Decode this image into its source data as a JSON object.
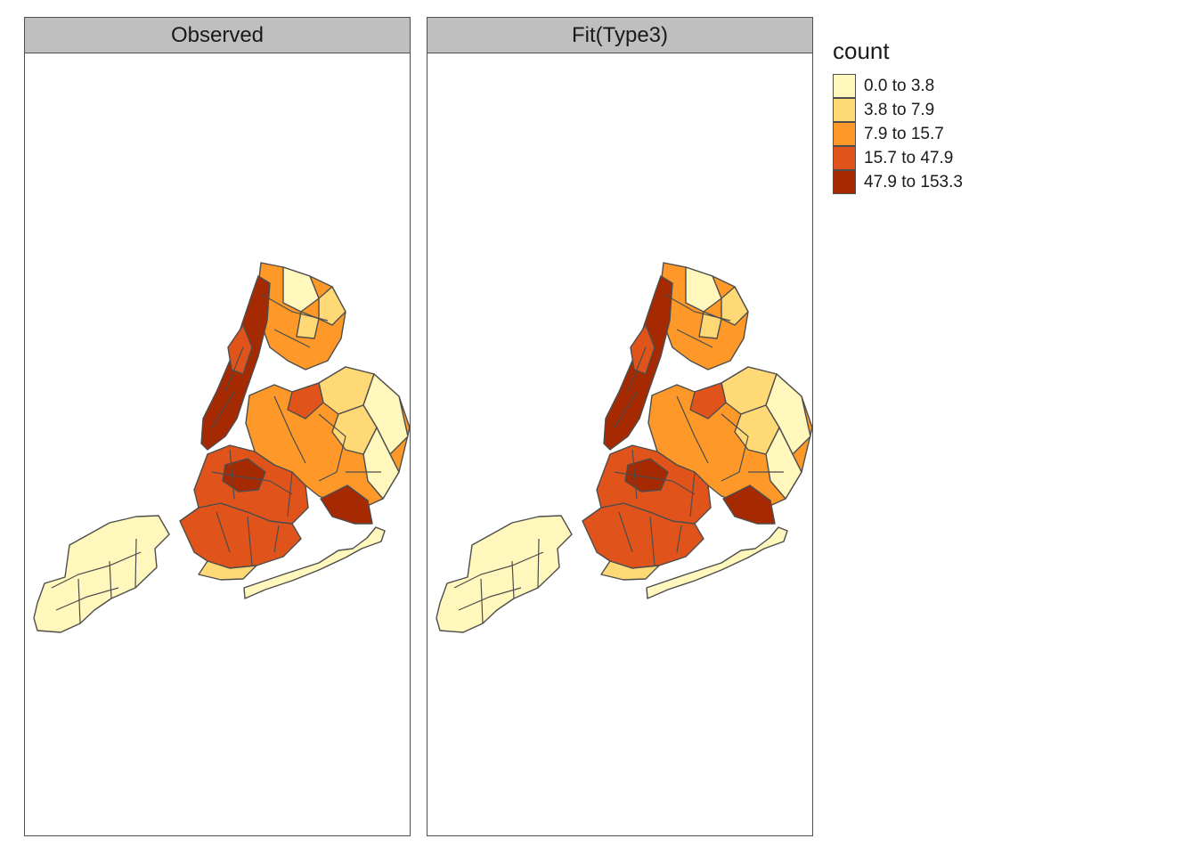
{
  "panels": [
    {
      "title": "Observed"
    },
    {
      "title": "Fit(Type3)"
    }
  ],
  "legend": {
    "title": "count",
    "items": [
      {
        "label": "0.0 to 3.8",
        "color": "#fff7bc"
      },
      {
        "label": "3.8 to 7.9",
        "color": "#fed976"
      },
      {
        "label": "7.9 to 15.7",
        "color": "#fe9929"
      },
      {
        "label": "15.7 to 47.9",
        "color": "#e0531a"
      },
      {
        "label": "47.9 to 153.3",
        "color": "#a52a02"
      }
    ]
  },
  "colors": {
    "border": "#4d4d4d",
    "strip": "#bfbfbf"
  }
}
